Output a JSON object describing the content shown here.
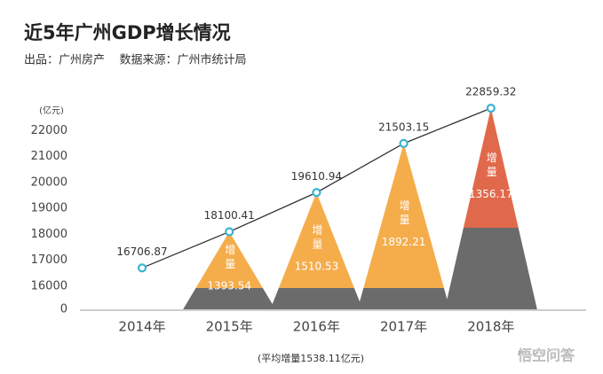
{
  "chart_data": {
    "type": "line",
    "title": "近5年广州GDP增长情况",
    "subtitle": "出品：广州房产    数据来源：广州市统计局",
    "y_unit": "(亿元)",
    "footnote": "(平均增量1538.11亿元)",
    "watermark": "悟空问答",
    "categories": [
      "2014年",
      "2015年",
      "2016年",
      "2017年",
      "2018年"
    ],
    "series": [
      {
        "name": "GDP",
        "color": "#333333",
        "marker_color": "#3bb3d0",
        "values": [
          16706.87,
          18100.41,
          19610.94,
          21503.15,
          22859.32
        ]
      }
    ],
    "increments": {
      "name": "增量",
      "values": [
        null,
        1393.54,
        1510.53,
        1892.21,
        1356.17
      ],
      "colors": [
        null,
        "#f5ad4c",
        "#f5ad4c",
        "#f5ad4c",
        "#e1694b"
      ],
      "base_color": "#6b6b6b"
    },
    "ylim": [
      0,
      23000
    ],
    "axis_break": [
      0,
      16000
    ],
    "yticks": [
      0,
      16000,
      17000,
      18000,
      19000,
      20000,
      21000,
      22000
    ]
  }
}
